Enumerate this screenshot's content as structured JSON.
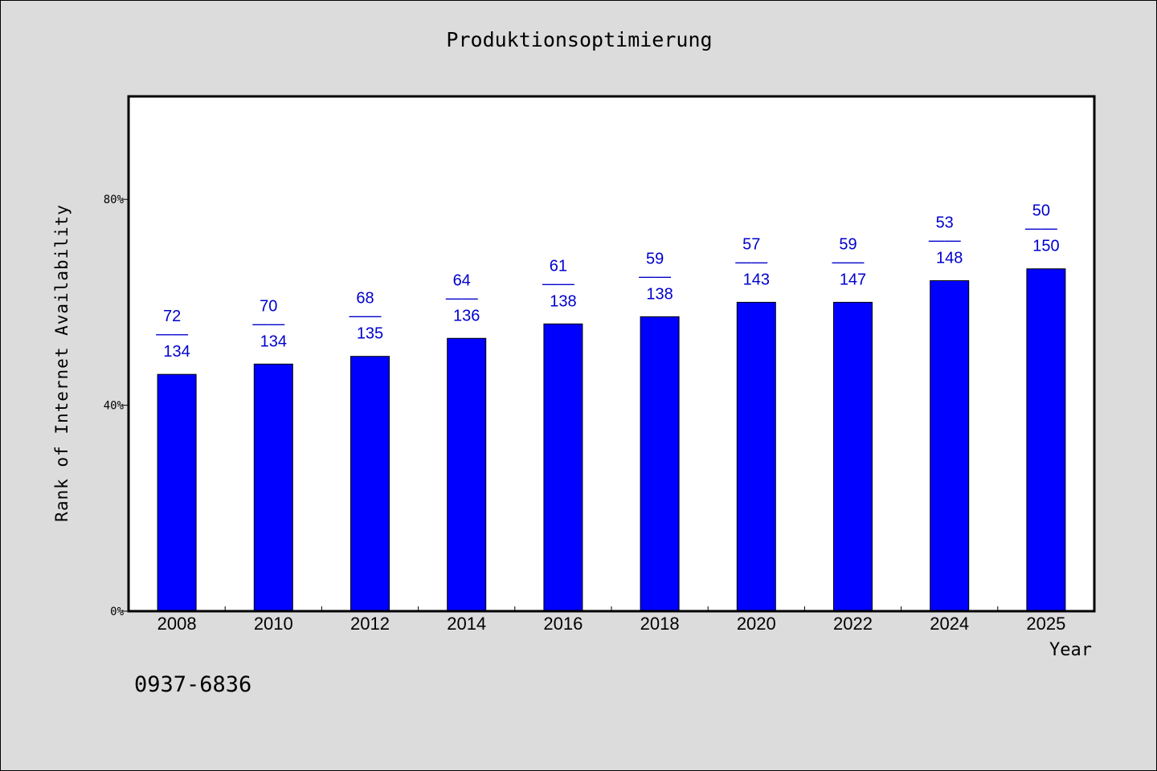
{
  "chart_data": {
    "type": "bar",
    "title": "Produktionsoptimierung",
    "xlabel": "Year",
    "ylabel": "Rank of Internet Availability",
    "categories": [
      "2008",
      "2010",
      "2012",
      "2014",
      "2016",
      "2018",
      "2020",
      "2022",
      "2024",
      "2025"
    ],
    "values": [
      46,
      48,
      49.5,
      53,
      55.8,
      57.2,
      60,
      60,
      64.2,
      66.5
    ],
    "bar_labels": [
      {
        "top": "72",
        "sep": "——",
        "bottom": "134"
      },
      {
        "top": "70",
        "sep": "——",
        "bottom": "134"
      },
      {
        "top": "68",
        "sep": "——",
        "bottom": "135"
      },
      {
        "top": "64",
        "sep": "——",
        "bottom": "136"
      },
      {
        "top": "61",
        "sep": "——",
        "bottom": "138"
      },
      {
        "top": "59",
        "sep": "——",
        "bottom": "138"
      },
      {
        "top": "57",
        "sep": "——",
        "bottom": "143"
      },
      {
        "top": "59",
        "sep": "——",
        "bottom": "147"
      },
      {
        "top": "53",
        "sep": "——",
        "bottom": "148"
      },
      {
        "top": "50",
        "sep": "——",
        "bottom": "150"
      }
    ],
    "yticks": [
      0,
      40,
      80
    ],
    "ytick_labels": [
      "0%",
      "40%",
      "80%"
    ],
    "ylim": [
      0,
      100
    ],
    "unit": "%",
    "grid": false,
    "colors": {
      "bar": "#0000ff",
      "label": "#0000cc",
      "background": "#dcdcdc",
      "plot_background": "#ffffff"
    }
  },
  "footer": {
    "code": "0937-6836"
  }
}
